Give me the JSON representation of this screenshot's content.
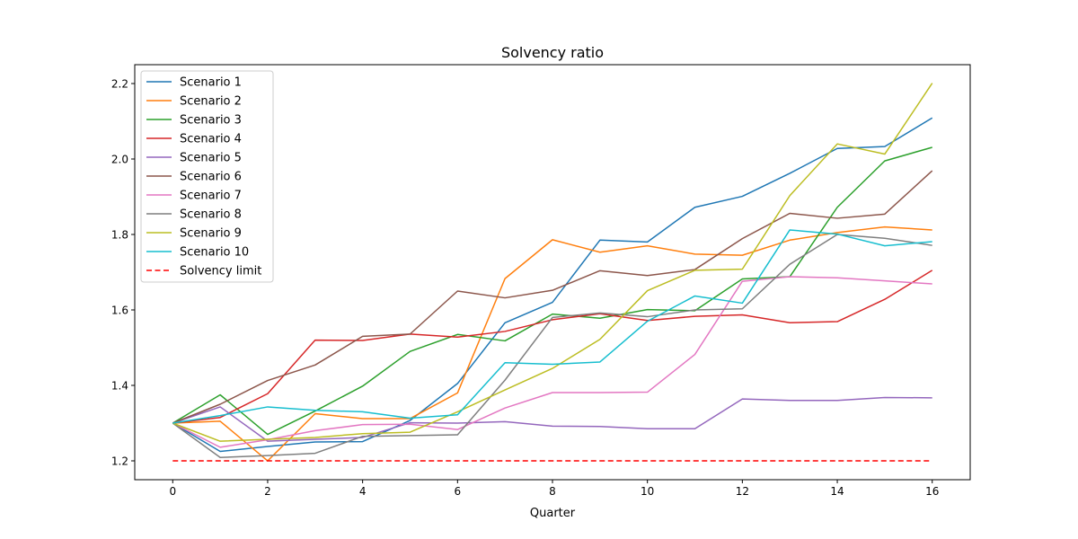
{
  "chart_data": {
    "type": "line",
    "title": "Solvency ratio",
    "xlabel": "Quarter",
    "ylabel": "",
    "xlim": [
      -0.8,
      16.8
    ],
    "ylim": [
      1.15,
      2.25
    ],
    "x": [
      0,
      1,
      2,
      3,
      4,
      5,
      6,
      7,
      8,
      9,
      10,
      11,
      12,
      13,
      14,
      15,
      16
    ],
    "xticks": [
      0,
      2,
      4,
      6,
      8,
      10,
      12,
      14,
      16
    ],
    "yticks": [
      1.2,
      1.4,
      1.6,
      1.8,
      2.0,
      2.2
    ],
    "ytick_labels": [
      "1.2",
      "1.4",
      "1.6",
      "1.8",
      "2.0",
      "2.2"
    ],
    "grid": false,
    "legend_position": "top-left",
    "series": [
      {
        "name": "Scenario 1",
        "color": "#1f77b4",
        "values": [
          1.3,
          1.225,
          1.238,
          1.25,
          1.251,
          1.307,
          1.405,
          1.566,
          1.62,
          1.785,
          1.78,
          1.872,
          1.901,
          1.962,
          2.028,
          2.033,
          2.109
        ]
      },
      {
        "name": "Scenario 2",
        "color": "#ff7f0e",
        "values": [
          1.3,
          1.305,
          1.2,
          1.325,
          1.312,
          1.312,
          1.38,
          1.683,
          1.786,
          1.753,
          1.77,
          1.748,
          1.745,
          1.785,
          1.805,
          1.82,
          1.812
        ]
      },
      {
        "name": "Scenario 3",
        "color": "#2ca02c",
        "values": [
          1.3,
          1.375,
          1.27,
          1.332,
          1.398,
          1.49,
          1.535,
          1.518,
          1.589,
          1.578,
          1.601,
          1.598,
          1.682,
          1.688,
          1.872,
          1.995,
          2.031
        ]
      },
      {
        "name": "Scenario 4",
        "color": "#d62728",
        "values": [
          1.3,
          1.315,
          1.378,
          1.52,
          1.519,
          1.536,
          1.528,
          1.543,
          1.574,
          1.59,
          1.572,
          1.583,
          1.587,
          1.566,
          1.569,
          1.628,
          1.705
        ]
      },
      {
        "name": "Scenario 5",
        "color": "#9467bd",
        "values": [
          1.3,
          1.343,
          1.252,
          1.257,
          1.262,
          1.301,
          1.3,
          1.304,
          1.292,
          1.291,
          1.285,
          1.285,
          1.364,
          1.36,
          1.36,
          1.368,
          1.367
        ]
      },
      {
        "name": "Scenario 6",
        "color": "#8c564b",
        "values": [
          1.3,
          1.35,
          1.413,
          1.454,
          1.53,
          1.536,
          1.65,
          1.632,
          1.652,
          1.704,
          1.691,
          1.707,
          1.789,
          1.856,
          1.843,
          1.854,
          1.969
        ]
      },
      {
        "name": "Scenario 7",
        "color": "#e377c2",
        "values": [
          1.3,
          1.236,
          1.256,
          1.28,
          1.296,
          1.297,
          1.283,
          1.34,
          1.381,
          1.381,
          1.382,
          1.482,
          1.676,
          1.688,
          1.685,
          1.677,
          1.669
        ]
      },
      {
        "name": "Scenario 8",
        "color": "#7f7f7f",
        "values": [
          1.3,
          1.209,
          1.214,
          1.22,
          1.265,
          1.267,
          1.269,
          1.414,
          1.58,
          1.592,
          1.582,
          1.6,
          1.603,
          1.721,
          1.8,
          1.79,
          1.771
        ]
      },
      {
        "name": "Scenario 9",
        "color": "#bcbd22",
        "values": [
          1.3,
          1.252,
          1.257,
          1.262,
          1.272,
          1.276,
          1.33,
          1.388,
          1.445,
          1.522,
          1.651,
          1.705,
          1.708,
          1.903,
          2.04,
          2.013,
          2.201
        ]
      },
      {
        "name": "Scenario 10",
        "color": "#17becf",
        "values": [
          1.3,
          1.32,
          1.343,
          1.334,
          1.33,
          1.313,
          1.322,
          1.46,
          1.456,
          1.462,
          1.57,
          1.637,
          1.618,
          1.812,
          1.801,
          1.77,
          1.781
        ]
      }
    ],
    "reference_line": {
      "name": "Solvency limit",
      "value": 1.2,
      "color": "#ff0000",
      "style": "dashed"
    }
  }
}
